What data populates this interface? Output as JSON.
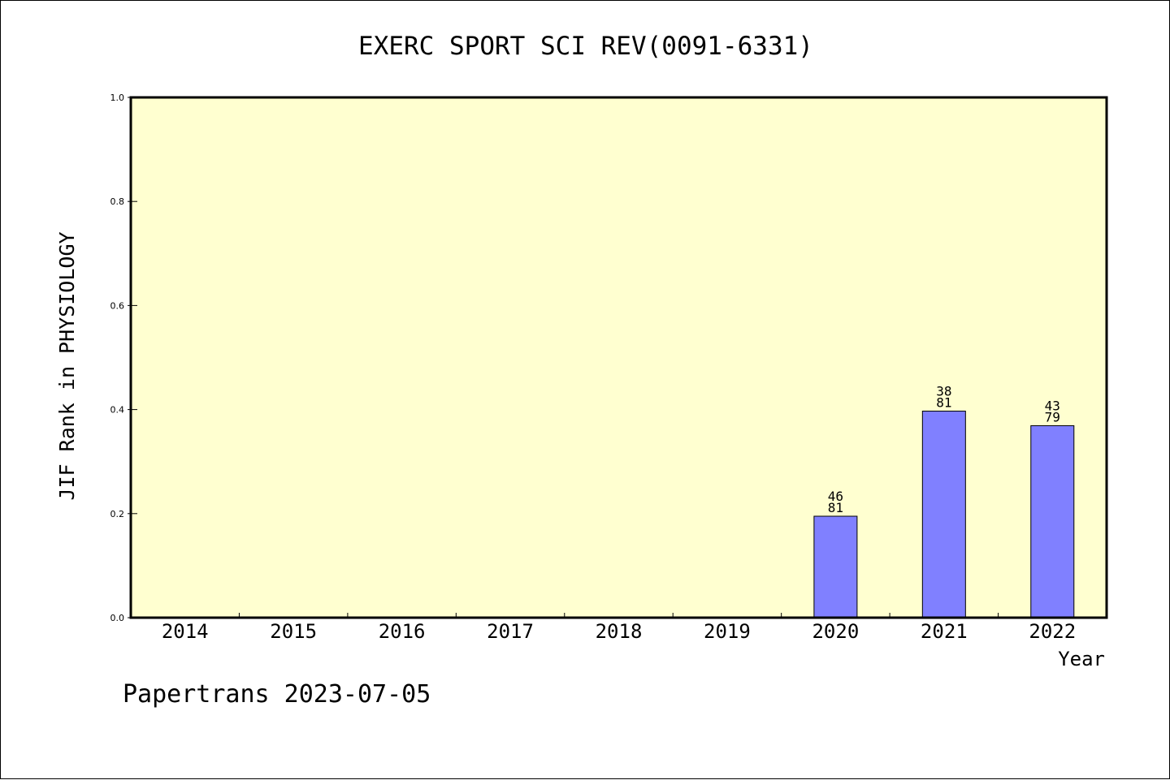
{
  "chart_data": {
    "type": "bar",
    "title": "EXERC SPORT SCI REV(0091-6331)",
    "xlabel": "Year",
    "ylabel": "JIF Rank in PHYSIOLOGY",
    "categories": [
      "2014",
      "2015",
      "2016",
      "2017",
      "2018",
      "2019",
      "2020",
      "2021",
      "2022"
    ],
    "values": [
      null,
      null,
      null,
      null,
      null,
      null,
      0.195,
      0.397,
      0.369
    ],
    "bar_labels": [
      null,
      null,
      null,
      null,
      null,
      null,
      {
        "rank": "46",
        "total": "81"
      },
      {
        "rank": "38",
        "total": "81"
      },
      {
        "rank": "43",
        "total": "79"
      }
    ],
    "ylim": [
      0,
      1.0
    ],
    "yticks": [
      0.0,
      0.2,
      0.4,
      0.6,
      0.8,
      1.0
    ],
    "ytick_labels": [
      "0.0",
      "0.2",
      "0.4",
      "0.6",
      "0.8",
      "1.0"
    ],
    "grid": false,
    "colors": {
      "plot_background": "#ffffd0",
      "bar_fill": "#8080ff",
      "bar_stroke": "#000000",
      "axis": "#000000"
    }
  },
  "footer": {
    "text": "Papertrans 2023-07-05"
  }
}
